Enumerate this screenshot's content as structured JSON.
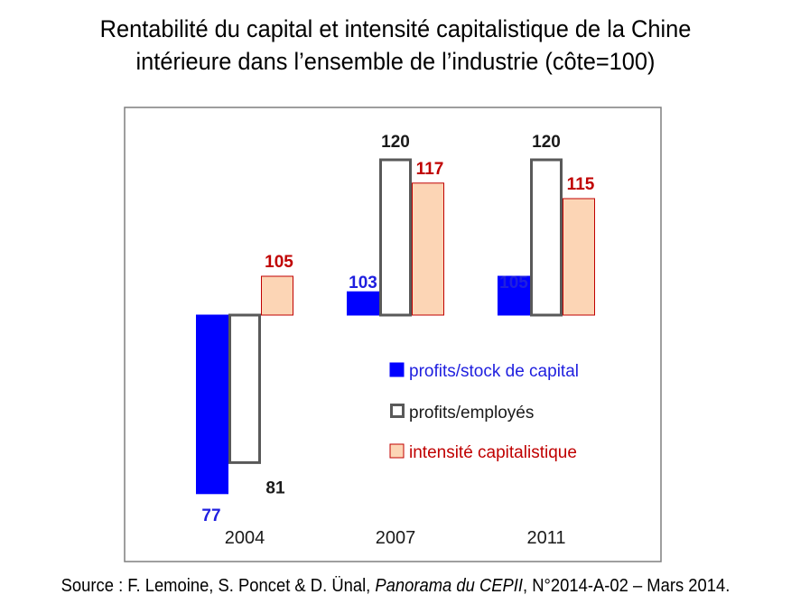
{
  "title_line1": "Rentabilité du capital et intensité capitalistique de la Chine",
  "title_line2": "intérieure dans l’ensemble de l’industrie (côte=100)",
  "source": {
    "prefix": "Source : F. Lemoine, S. Poncet & D. Ünal, ",
    "publication": "Panorama du CEPII",
    "suffix": ", N°2014-A-02 – Mars 2014."
  },
  "chart_data": {
    "type": "bar",
    "baseline": 100,
    "categories": [
      "2004",
      "2007",
      "2011"
    ],
    "series": [
      {
        "name": "profits/stock de capital",
        "values": [
          77,
          103,
          105
        ],
        "fill": "#0000FF",
        "stroke": "#0000FF",
        "label_color": "#1F1FDF"
      },
      {
        "name": "profits/employés",
        "values": [
          81,
          120,
          120
        ],
        "fill": "#FFFFFF",
        "stroke": "#595959",
        "label_color": "#1A1A1A"
      },
      {
        "name": "intensité capitalistique",
        "values": [
          105,
          117,
          115
        ],
        "fill": "#FCD5B5",
        "stroke": "#C00000",
        "label_color": "#C00000"
      }
    ],
    "legend_placement": "right",
    "grid": false,
    "plot_border_color": "#7F7F7F"
  }
}
